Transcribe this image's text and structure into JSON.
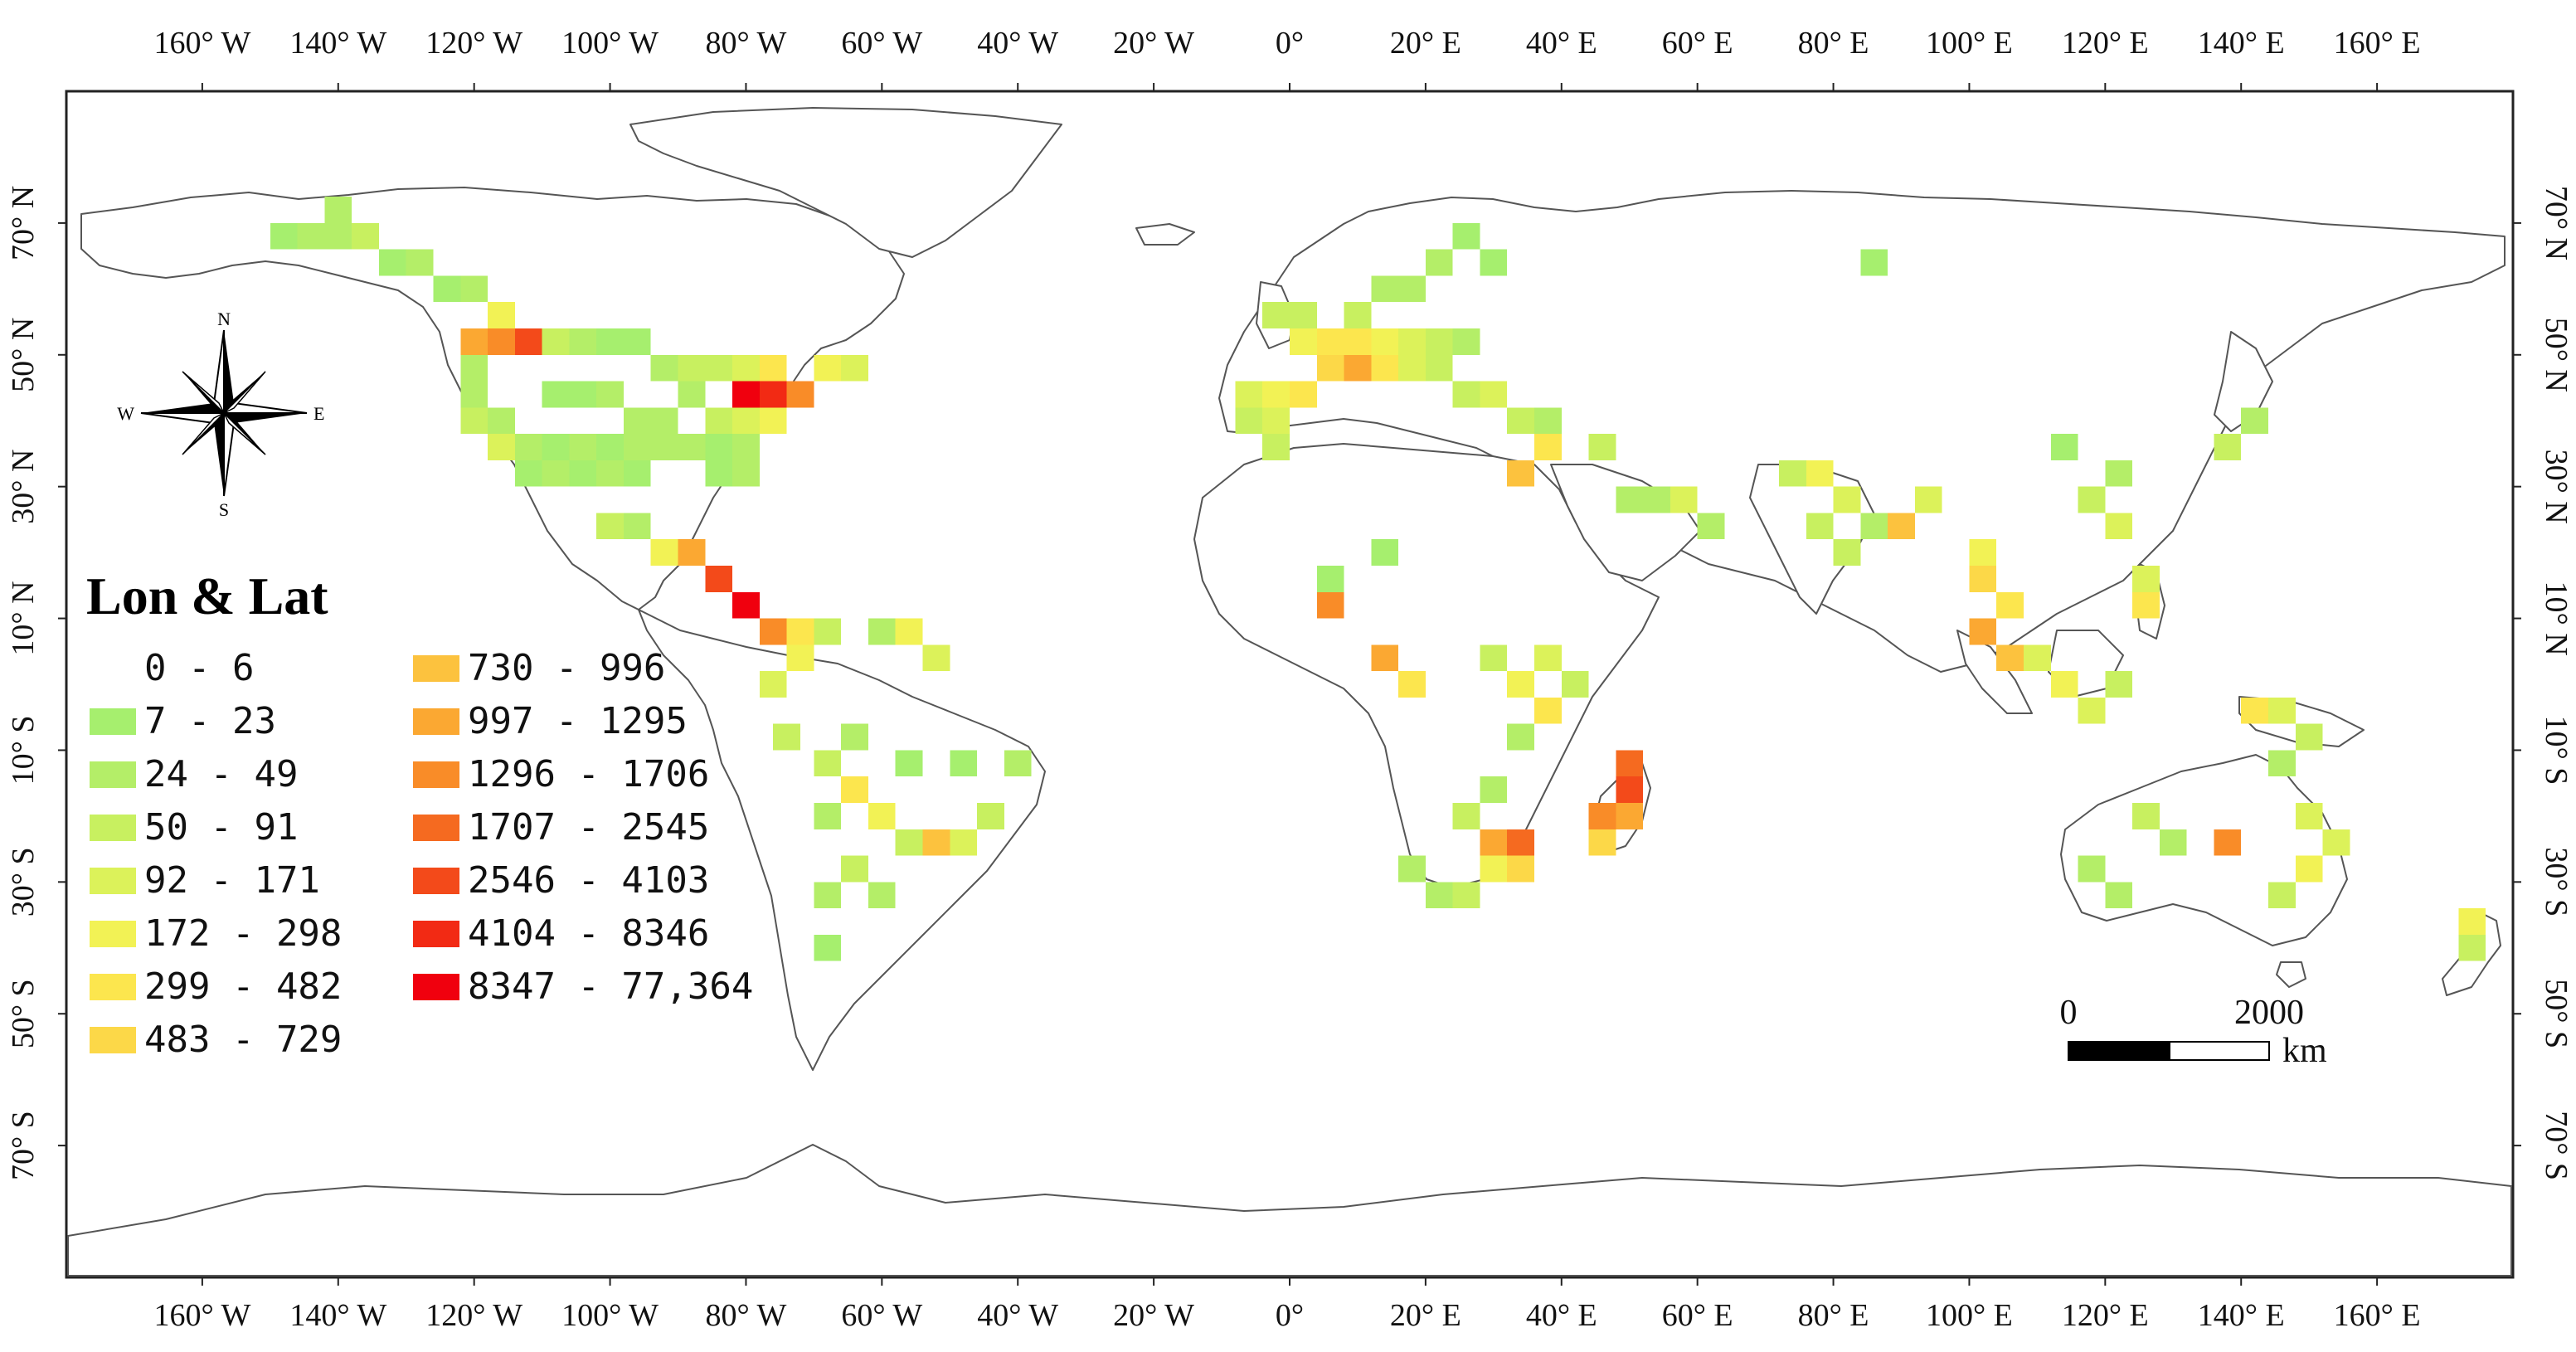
{
  "legend": {
    "title": "Lon & Lat",
    "classes": [
      {
        "label": "0 - 6",
        "color": "#ffffff"
      },
      {
        "label": "7 - 23",
        "color": "#a6ef6e"
      },
      {
        "label": "24 - 49",
        "color": "#b4ee68"
      },
      {
        "label": "50 - 91",
        "color": "#c8f060"
      },
      {
        "label": "92 - 171",
        "color": "#dcf25a"
      },
      {
        "label": "172 - 298",
        "color": "#f2f255"
      },
      {
        "label": "299 - 482",
        "color": "#fce64e"
      },
      {
        "label": "483 - 729",
        "color": "#fcd848"
      },
      {
        "label": "730 - 996",
        "color": "#fcc23e"
      },
      {
        "label": "997 - 1295",
        "color": "#fba832"
      },
      {
        "label": "1296 - 1706",
        "color": "#f98c28"
      },
      {
        "label": "1707 - 2545",
        "color": "#f56a20"
      },
      {
        "label": "2546 - 4103",
        "color": "#f34a1a"
      },
      {
        "label": "4104 - 8346",
        "color": "#f22a14"
      },
      {
        "label": "8347 - 77,364",
        "color": "#f0000e"
      }
    ]
  },
  "axes": {
    "x_ticks": [
      "160° W",
      "140° W",
      "120° W",
      "100° W",
      "80° W",
      "60° W",
      "40° W",
      "20° W",
      "0°",
      "20° E",
      "40° E",
      "60° E",
      "80° E",
      "100° E",
      "120° E",
      "140° E",
      "160° E"
    ],
    "y_ticks": [
      "70° N",
      "50° N",
      "30° N",
      "10° N",
      "10° S",
      "30° S",
      "50° S",
      "70° S"
    ]
  },
  "compass": {
    "n": "N",
    "s": "S",
    "e": "E",
    "w": "W"
  },
  "scale_bar": {
    "start": "0",
    "end": "2000",
    "unit": "km"
  },
  "map_data": {
    "grid_step_deg": 4,
    "cells": [
      [
        -150,
        66,
        1
      ],
      [
        -146,
        66,
        2
      ],
      [
        -142,
        66,
        2
      ],
      [
        -138,
        66,
        3
      ],
      [
        -142,
        70,
        2
      ],
      [
        -134,
        62,
        1
      ],
      [
        -130,
        62,
        2
      ],
      [
        -126,
        58,
        1
      ],
      [
        -122,
        58,
        2
      ],
      [
        -118,
        54,
        5
      ],
      [
        -122,
        50,
        9
      ],
      [
        -118,
        50,
        10
      ],
      [
        -114,
        50,
        12
      ],
      [
        -110,
        50,
        3
      ],
      [
        -106,
        50,
        2
      ],
      [
        -102,
        50,
        1
      ],
      [
        -98,
        50,
        1
      ],
      [
        -94,
        46,
        2
      ],
      [
        -90,
        46,
        3
      ],
      [
        -86,
        46,
        3
      ],
      [
        -82,
        46,
        4
      ],
      [
        -78,
        42,
        13
      ],
      [
        -82,
        42,
        14
      ],
      [
        -78,
        46,
        6
      ],
      [
        -74,
        42,
        10
      ],
      [
        -70,
        46,
        5
      ],
      [
        -66,
        46,
        4
      ],
      [
        -122,
        46,
        2
      ],
      [
        -122,
        42,
        2
      ],
      [
        -122,
        38,
        3
      ],
      [
        -118,
        38,
        2
      ],
      [
        -118,
        34,
        4
      ],
      [
        -114,
        34,
        2
      ],
      [
        -110,
        34,
        1
      ],
      [
        -106,
        34,
        2
      ],
      [
        -102,
        34,
        1
      ],
      [
        -98,
        34,
        2
      ],
      [
        -94,
        34,
        2
      ],
      [
        -90,
        34,
        2
      ],
      [
        -86,
        34,
        1
      ],
      [
        -82,
        34,
        2
      ],
      [
        -82,
        30,
        2
      ],
      [
        -86,
        30,
        1
      ],
      [
        -98,
        30,
        1
      ],
      [
        -102,
        30,
        2
      ],
      [
        -106,
        30,
        1
      ],
      [
        -110,
        30,
        2
      ],
      [
        -114,
        30,
        1
      ],
      [
        -94,
        38,
        2
      ],
      [
        -98,
        38,
        2
      ],
      [
        -86,
        38,
        3
      ],
      [
        -82,
        38,
        4
      ],
      [
        -78,
        38,
        5
      ],
      [
        -110,
        42,
        1
      ],
      [
        -106,
        42,
        1
      ],
      [
        -102,
        42,
        2
      ],
      [
        -90,
        42,
        2
      ],
      [
        -102,
        22,
        3
      ],
      [
        -98,
        22,
        2
      ],
      [
        -94,
        18,
        5
      ],
      [
        -90,
        18,
        9
      ],
      [
        -86,
        14,
        12
      ],
      [
        -82,
        10,
        14
      ],
      [
        -78,
        6,
        10
      ],
      [
        -74,
        6,
        6
      ],
      [
        -74,
        2,
        5
      ],
      [
        -78,
        -2,
        4
      ],
      [
        -70,
        6,
        3
      ],
      [
        -62,
        6,
        2
      ],
      [
        -58,
        6,
        5
      ],
      [
        -54,
        2,
        4
      ],
      [
        -66,
        -18,
        6
      ],
      [
        -62,
        -22,
        5
      ],
      [
        -58,
        -26,
        3
      ],
      [
        -54,
        -26,
        8
      ],
      [
        -50,
        -26,
        4
      ],
      [
        -46,
        -22,
        3
      ],
      [
        -42,
        -14,
        2
      ],
      [
        -50,
        -14,
        1
      ],
      [
        -58,
        -14,
        1
      ],
      [
        -66,
        -10,
        2
      ],
      [
        -70,
        -22,
        2
      ],
      [
        -66,
        -30,
        3
      ],
      [
        -62,
        -34,
        2
      ],
      [
        -70,
        -34,
        2
      ],
      [
        -70,
        -42,
        1
      ],
      [
        -8,
        38,
        3
      ],
      [
        -8,
        42,
        4
      ],
      [
        -4,
        42,
        5
      ],
      [
        0,
        42,
        6
      ],
      [
        -4,
        38,
        4
      ],
      [
        -4,
        34,
        3
      ],
      [
        4,
        46,
        7
      ],
      [
        8,
        46,
        9
      ],
      [
        12,
        46,
        6
      ],
      [
        16,
        46,
        4
      ],
      [
        20,
        46,
        3
      ],
      [
        24,
        42,
        3
      ],
      [
        28,
        42,
        4
      ],
      [
        32,
        38,
        3
      ],
      [
        36,
        38,
        2
      ],
      [
        0,
        50,
        5
      ],
      [
        4,
        50,
        6
      ],
      [
        8,
        50,
        6
      ],
      [
        12,
        50,
        5
      ],
      [
        16,
        50,
        4
      ],
      [
        20,
        50,
        3
      ],
      [
        24,
        50,
        2
      ],
      [
        -4,
        54,
        3
      ],
      [
        0,
        54,
        3
      ],
      [
        8,
        54,
        3
      ],
      [
        12,
        58,
        2
      ],
      [
        16,
        58,
        2
      ],
      [
        20,
        62,
        2
      ],
      [
        24,
        66,
        1
      ],
      [
        28,
        62,
        1
      ],
      [
        36,
        34,
        6
      ],
      [
        32,
        30,
        8
      ],
      [
        44,
        34,
        3
      ],
      [
        52,
        26,
        2
      ],
      [
        56,
        26,
        4
      ],
      [
        72,
        30,
        3
      ],
      [
        76,
        30,
        5
      ],
      [
        80,
        26,
        4
      ],
      [
        76,
        22,
        3
      ],
      [
        80,
        18,
        3
      ],
      [
        84,
        22,
        2
      ],
      [
        88,
        22,
        8
      ],
      [
        92,
        26,
        4
      ],
      [
        100,
        18,
        5
      ],
      [
        100,
        14,
        7
      ],
      [
        104,
        10,
        6
      ],
      [
        100,
        6,
        9
      ],
      [
        104,
        2,
        8
      ],
      [
        108,
        2,
        4
      ],
      [
        112,
        -2,
        5
      ],
      [
        116,
        -6,
        4
      ],
      [
        120,
        -2,
        3
      ],
      [
        124,
        14,
        4
      ],
      [
        124,
        10,
        6
      ],
      [
        120,
        22,
        4
      ],
      [
        116,
        26,
        3
      ],
      [
        120,
        30,
        2
      ],
      [
        112,
        34,
        1
      ],
      [
        136,
        34,
        3
      ],
      [
        140,
        38,
        2
      ],
      [
        -76,
        -10,
        3
      ],
      [
        -70,
        -14,
        3
      ],
      [
        4,
        10,
        10
      ],
      [
        12,
        2,
        9
      ],
      [
        16,
        -2,
        6
      ],
      [
        28,
        2,
        3
      ],
      [
        32,
        -2,
        5
      ],
      [
        36,
        2,
        4
      ],
      [
        36,
        -6,
        6
      ],
      [
        40,
        -2,
        3
      ],
      [
        32,
        -10,
        2
      ],
      [
        28,
        -18,
        2
      ],
      [
        24,
        -22,
        3
      ],
      [
        28,
        -26,
        9
      ],
      [
        32,
        -26,
        11
      ],
      [
        32,
        -30,
        7
      ],
      [
        28,
        -30,
        5
      ],
      [
        24,
        -34,
        3
      ],
      [
        20,
        -34,
        2
      ],
      [
        16,
        -30,
        2
      ],
      [
        48,
        -14,
        11
      ],
      [
        48,
        -18,
        12
      ],
      [
        44,
        -22,
        10
      ],
      [
        48,
        -22,
        9
      ],
      [
        44,
        -26,
        7
      ],
      [
        140,
        -6,
        6
      ],
      [
        144,
        -6,
        4
      ],
      [
        148,
        -10,
        3
      ],
      [
        144,
        -14,
        2
      ],
      [
        148,
        -22,
        4
      ],
      [
        152,
        -26,
        4
      ],
      [
        148,
        -30,
        5
      ],
      [
        144,
        -34,
        3
      ],
      [
        136,
        -26,
        10
      ],
      [
        128,
        -26,
        2
      ],
      [
        120,
        -34,
        2
      ],
      [
        116,
        -30,
        2
      ],
      [
        124,
        -22,
        3
      ],
      [
        172,
        -38,
        5
      ],
      [
        172,
        -42,
        3
      ],
      [
        84,
        62,
        1
      ],
      [
        48,
        26,
        2
      ],
      [
        60,
        22,
        2
      ],
      [
        4,
        14,
        1
      ],
      [
        12,
        18,
        1
      ]
    ]
  }
}
